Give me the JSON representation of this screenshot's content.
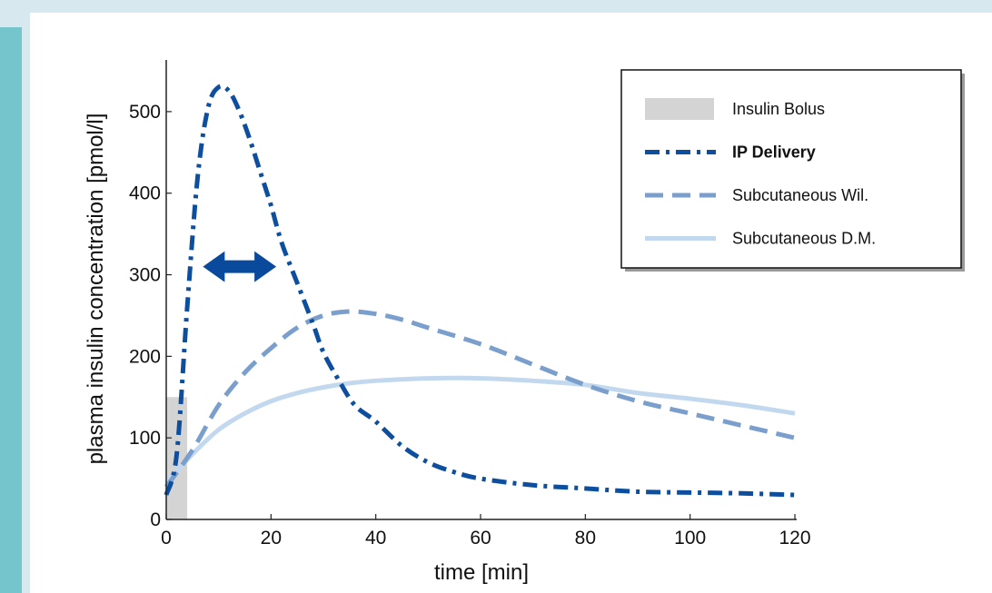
{
  "chart_data": {
    "type": "line",
    "xlabel": "time [min]",
    "ylabel": "plasma insulin concentration [pmol/l]",
    "xlim": [
      0,
      120
    ],
    "ylim": [
      0,
      550
    ],
    "xticks": [
      0,
      20,
      40,
      60,
      80,
      100,
      120
    ],
    "yticks": [
      0,
      100,
      200,
      300,
      400,
      500
    ],
    "grid": false,
    "legend_position": "top-right",
    "bolus": {
      "name": "Insulin Bolus",
      "x_start": 0,
      "x_end": 4,
      "height": 150,
      "color": "#d4d4d4"
    },
    "series": [
      {
        "name": "IP Delivery",
        "color": "#0d4f9e",
        "style": "dash-dot",
        "x": [
          0,
          2,
          4,
          6,
          8,
          10,
          12,
          14,
          16,
          18,
          20,
          22,
          25,
          28,
          30,
          33,
          36,
          40,
          45,
          50,
          55,
          60,
          70,
          80,
          90,
          100,
          110,
          120
        ],
        "y": [
          30,
          80,
          260,
          420,
          505,
          530,
          525,
          500,
          465,
          425,
          385,
          340,
          290,
          240,
          205,
          170,
          140,
          120,
          90,
          70,
          58,
          50,
          42,
          38,
          34,
          33,
          32,
          30
        ]
      },
      {
        "name": "Subcutaneous Wil.",
        "color": "#7b9fcc",
        "style": "dashed",
        "x": [
          0,
          5,
          10,
          15,
          20,
          25,
          30,
          35,
          40,
          45,
          50,
          60,
          70,
          80,
          90,
          100,
          110,
          120
        ],
        "y": [
          40,
          85,
          140,
          180,
          210,
          235,
          250,
          255,
          252,
          245,
          235,
          215,
          190,
          165,
          145,
          130,
          115,
          100
        ]
      },
      {
        "name": "Subcutaneous D.M.",
        "color": "#c2d8ef",
        "style": "solid",
        "x": [
          0,
          5,
          10,
          15,
          20,
          25,
          30,
          35,
          40,
          50,
          60,
          70,
          80,
          90,
          100,
          110,
          120
        ],
        "y": [
          45,
          80,
          110,
          130,
          145,
          155,
          162,
          167,
          170,
          173,
          173,
          170,
          165,
          155,
          148,
          140,
          130
        ]
      }
    ],
    "annotation": {
      "type": "double-arrow",
      "x_start": 7,
      "x_end": 21,
      "y": 310,
      "color": "#0a4a9c"
    }
  },
  "legend": {
    "items": [
      {
        "label": "Insulin Bolus",
        "swatch": "bar",
        "color": "#d4d4d4",
        "bold": false
      },
      {
        "label": "IP Delivery",
        "swatch": "dash-dot",
        "color": "#0d4f9e",
        "bold": true
      },
      {
        "label": "Subcutaneous Wil.",
        "swatch": "dashed",
        "color": "#7b9fcc",
        "bold": false
      },
      {
        "label": "Subcutaneous D.M.",
        "swatch": "solid",
        "color": "#c2d8ef",
        "bold": false
      }
    ]
  }
}
